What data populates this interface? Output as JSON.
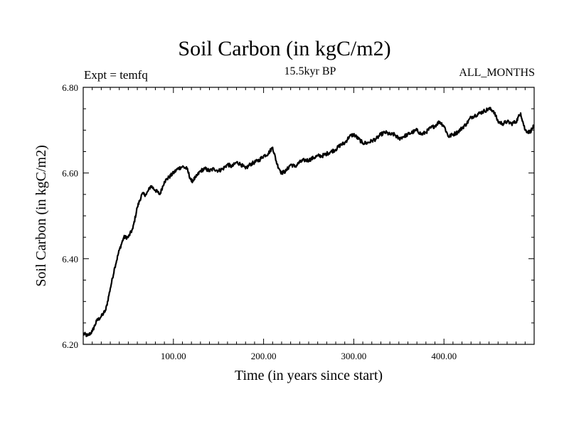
{
  "header": {
    "title": "Soil Carbon (in kgC/m2)",
    "expt": "Expt = temfq",
    "subtitle": "15.5kyr BP",
    "months": "ALL_MONTHS"
  },
  "chart_data": {
    "type": "line",
    "title": "Soil Carbon (in kgC/m2)",
    "xlabel": "Time (in years since start)",
    "ylabel": "Soil Carbon (in kgC/m2)",
    "xlim": [
      0,
      500
    ],
    "ylim": [
      6.2,
      6.8
    ],
    "x_ticks": [
      100,
      200,
      300,
      400
    ],
    "x_tick_labels": [
      "100.00",
      "200.00",
      "300.00",
      "400.00"
    ],
    "y_ticks": [
      6.2,
      6.4,
      6.6,
      6.8
    ],
    "y_tick_labels": [
      "6.20",
      "6.40",
      "6.60",
      "6.80"
    ],
    "grid": false,
    "color": "#000000",
    "series": [
      {
        "name": "Soil Carbon",
        "x": [
          0,
          5,
          10,
          15,
          20,
          25,
          30,
          35,
          40,
          45,
          50,
          55,
          60,
          65,
          70,
          75,
          80,
          85,
          90,
          95,
          100,
          105,
          110,
          115,
          120,
          125,
          130,
          135,
          140,
          145,
          150,
          155,
          160,
          165,
          170,
          175,
          180,
          185,
          190,
          195,
          200,
          205,
          210,
          215,
          220,
          225,
          230,
          235,
          240,
          245,
          250,
          255,
          260,
          265,
          270,
          275,
          280,
          285,
          290,
          295,
          300,
          305,
          310,
          315,
          320,
          325,
          330,
          335,
          340,
          345,
          350,
          355,
          360,
          365,
          370,
          375,
          380,
          385,
          390,
          395,
          400,
          405,
          410,
          415,
          420,
          425,
          430,
          435,
          440,
          445,
          450,
          455,
          460,
          465,
          470,
          475,
          480,
          485,
          490,
          495,
          500
        ],
        "values": [
          6.225,
          6.22,
          6.23,
          6.255,
          6.265,
          6.28,
          6.33,
          6.38,
          6.42,
          6.45,
          6.45,
          6.47,
          6.52,
          6.55,
          6.55,
          6.57,
          6.56,
          6.55,
          6.58,
          6.59,
          6.6,
          6.61,
          6.615,
          6.61,
          6.58,
          6.59,
          6.605,
          6.61,
          6.605,
          6.61,
          6.605,
          6.61,
          6.62,
          6.615,
          6.625,
          6.62,
          6.61,
          6.62,
          6.625,
          6.63,
          6.64,
          6.645,
          6.66,
          6.62,
          6.6,
          6.605,
          6.62,
          6.615,
          6.625,
          6.63,
          6.63,
          6.635,
          6.64,
          6.64,
          6.645,
          6.65,
          6.655,
          6.665,
          6.67,
          6.685,
          6.69,
          6.68,
          6.67,
          6.67,
          6.675,
          6.68,
          6.69,
          6.695,
          6.69,
          6.69,
          6.68,
          6.685,
          6.69,
          6.695,
          6.7,
          6.69,
          6.695,
          6.705,
          6.71,
          6.72,
          6.71,
          6.685,
          6.69,
          6.695,
          6.705,
          6.715,
          6.73,
          6.735,
          6.74,
          6.745,
          6.75,
          6.745,
          6.72,
          6.715,
          6.72,
          6.715,
          6.72,
          6.74,
          6.7,
          6.695,
          6.71
        ]
      }
    ]
  }
}
